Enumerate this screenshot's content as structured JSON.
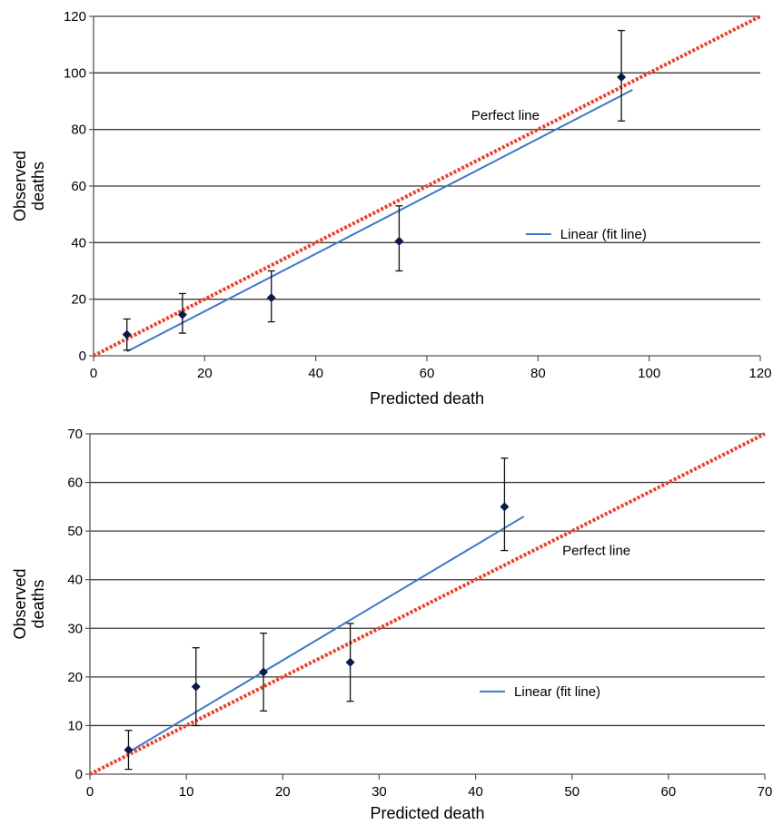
{
  "chart_data": [
    {
      "type": "scatter",
      "title": "",
      "xlabel": "Predicted death",
      "ylabel": "Observed deaths",
      "xlim": [
        0,
        120
      ],
      "ylim": [
        0,
        120
      ],
      "x_ticks": [
        "0",
        "20",
        "40",
        "60",
        "80",
        "100",
        "120"
      ],
      "y_ticks": [
        "0",
        "20",
        "40",
        "60",
        "80",
        "100",
        "120"
      ],
      "grid": "horizontal",
      "series": [
        {
          "kind": "points_with_error_bars",
          "points": [
            {
              "x": 6,
              "y": 7.5,
              "lower": 2,
              "upper": 13
            },
            {
              "x": 16,
              "y": 14.5,
              "lower": 8,
              "upper": 22
            },
            {
              "x": 32,
              "y": 20.5,
              "lower": 12,
              "upper": 30
            },
            {
              "x": 55,
              "y": 40.5,
              "lower": 30,
              "upper": 53
            },
            {
              "x": 95,
              "y": 98.5,
              "lower": 83,
              "upper": 115
            }
          ],
          "color": "#0a1a4a"
        },
        {
          "kind": "line",
          "name": "Perfect line",
          "x": [
            0,
            120
          ],
          "y": [
            0,
            120
          ],
          "style": "dotted",
          "color": "#e8412c"
        },
        {
          "kind": "line",
          "name": "Linear (fit line)",
          "x": [
            6,
            97
          ],
          "y": [
            1.5,
            94
          ],
          "style": "solid",
          "color": "#3c78c8"
        }
      ],
      "annotations": [
        {
          "text": "Perfect line",
          "x": 68,
          "y": 85
        },
        {
          "text": "Linear (fit line)",
          "x": 84,
          "y": 43
        }
      ],
      "legend": {
        "entries": [
          "Linear (fit line)"
        ],
        "position": "right-middle"
      }
    },
    {
      "type": "scatter",
      "title": "",
      "xlabel": "Predicted death",
      "ylabel": "Observed deaths",
      "xlim": [
        0,
        70
      ],
      "ylim": [
        0,
        70
      ],
      "x_ticks": [
        "0",
        "10",
        "20",
        "30",
        "40",
        "50",
        "60",
        "70"
      ],
      "y_ticks": [
        "0",
        "10",
        "20",
        "30",
        "40",
        "50",
        "60",
        "70"
      ],
      "grid": "horizontal",
      "series": [
        {
          "kind": "points_with_error_bars",
          "points": [
            {
              "x": 4,
              "y": 5,
              "lower": 1,
              "upper": 9
            },
            {
              "x": 11,
              "y": 18,
              "lower": 10,
              "upper": 26
            },
            {
              "x": 18,
              "y": 21,
              "lower": 13,
              "upper": 29
            },
            {
              "x": 27,
              "y": 23,
              "lower": 15,
              "upper": 31
            },
            {
              "x": 43,
              "y": 55,
              "lower": 46,
              "upper": 65
            }
          ],
          "color": "#0a1a4a"
        },
        {
          "kind": "line",
          "name": "Perfect line",
          "x": [
            0,
            70
          ],
          "y": [
            0,
            70
          ],
          "style": "dotted",
          "color": "#e8412c"
        },
        {
          "kind": "line",
          "name": "Linear (fit line)",
          "x": [
            4,
            45
          ],
          "y": [
            4.5,
            53
          ],
          "style": "solid",
          "color": "#3c78c8"
        }
      ],
      "annotations": [
        {
          "text": "Perfect line",
          "x": 49,
          "y": 46
        },
        {
          "text": "Linear (fit line)",
          "x": 44,
          "y": 17
        }
      ],
      "legend": {
        "entries": [
          "Linear (fit line)"
        ],
        "position": "bottom-middle"
      }
    }
  ]
}
